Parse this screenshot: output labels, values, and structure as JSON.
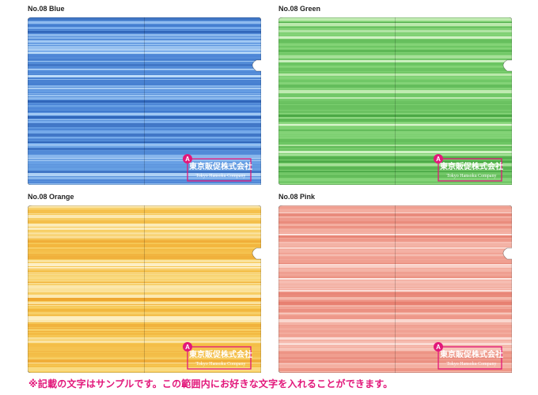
{
  "panels": [
    {
      "label": "No.08  Blue",
      "base": "#5b93dc",
      "stripes": [
        "#3f78cc",
        "#7fb2ee",
        "#a9cff6",
        "#2f64b8",
        "#6aa2e6",
        "#c6e2fb",
        "#4d86d6"
      ]
    },
    {
      "label": "No.08  Green",
      "base": "#7ccf70",
      "stripes": [
        "#5fb957",
        "#9bdd8c",
        "#c2ecb3",
        "#4aa845",
        "#86d47a",
        "#d8f4cc",
        "#6cc463"
      ]
    },
    {
      "label": "No.08  Orange",
      "base": "#f6c957",
      "stripes": [
        "#f2b53c",
        "#f9dc86",
        "#fbe9b2",
        "#eea52f",
        "#f7cf6a",
        "#fdf0c8",
        "#f4be4a"
      ]
    },
    {
      "label": "No.08  Pink",
      "base": "#f2a89a",
      "stripes": [
        "#ec9283",
        "#f7c4b9",
        "#fbdcd5",
        "#e67f70",
        "#f4b4a7",
        "#fde8e3",
        "#ef9d8f"
      ]
    }
  ],
  "logo": {
    "badge": "A",
    "name": "東京販促株式会社",
    "sub": "Tokyo Hansoku Company"
  },
  "caption": "※記載の文字はサンプルです。この範囲内にお好きな文字を入れることができます。"
}
